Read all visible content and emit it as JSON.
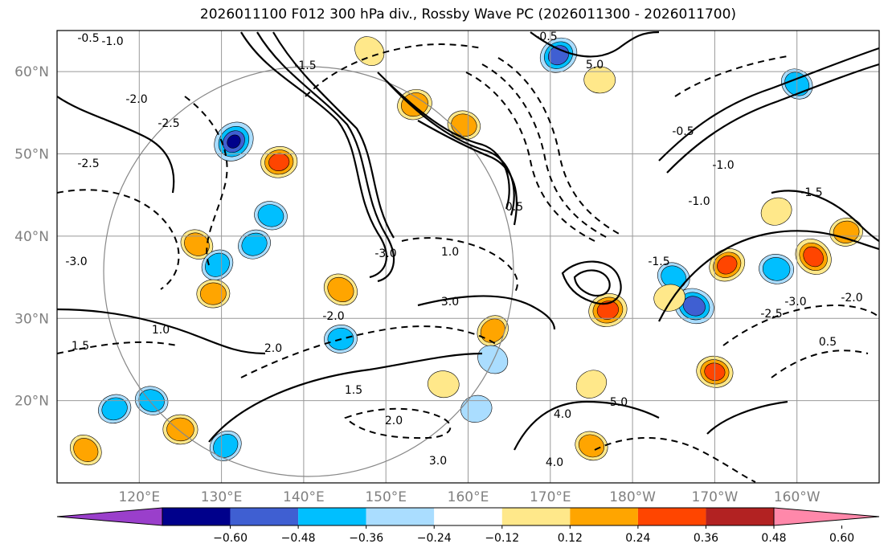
{
  "chart_data": {
    "type": "heatmap",
    "title": "2026011100 F012 300 hPa div., Rossby Wave PC (2026011300 - 2026011700)",
    "map": {
      "lon_range": [
        110,
        210
      ],
      "lat_range": [
        10,
        65
      ],
      "grid": true,
      "lon_ticks": [
        {
          "value": 120,
          "label": "120°E"
        },
        {
          "value": 130,
          "label": "130°E"
        },
        {
          "value": 140,
          "label": "140°E"
        },
        {
          "value": 150,
          "label": "150°E"
        },
        {
          "value": 160,
          "label": "160°E"
        },
        {
          "value": 170,
          "label": "170°E"
        },
        {
          "value": 180,
          "label": "180°W"
        },
        {
          "value": 190,
          "label": "170°W"
        },
        {
          "value": 200,
          "label": "160°W"
        }
      ],
      "lat_ticks": [
        {
          "value": 20,
          "label": "20°N"
        },
        {
          "value": 30,
          "label": "30°N"
        },
        {
          "value": 40,
          "label": "40°N"
        },
        {
          "value": 50,
          "label": "50°N"
        },
        {
          "value": 60,
          "label": "60°N"
        }
      ]
    },
    "colorbar": {
      "orientation": "horizontal",
      "extend": "both",
      "levels": [
        -0.6,
        -0.48,
        -0.36,
        -0.24,
        -0.12,
        0.12,
        0.24,
        0.36,
        0.48,
        0.6
      ],
      "labels": [
        "−0.60",
        "−0.48",
        "−0.36",
        "−0.24",
        "−0.12",
        "0.12",
        "0.24",
        "0.36",
        "0.48",
        "0.60"
      ],
      "colors": [
        "#9a3fcb",
        "#00008b",
        "#3f5fd2",
        "#00bfff",
        "#aaddff",
        "#ffffff",
        "#ffe88a",
        "#ffa500",
        "#ff4500",
        "#b22222",
        "#ff88aa"
      ]
    },
    "contour_levels_shown": [
      "-0.5",
      "-1.0",
      "-1.5",
      "-2.0",
      "-2.5",
      "-3.0",
      "0.5",
      "1.0",
      "1.5",
      "2.0",
      "3.0",
      "4.0",
      "5.0"
    ],
    "divergence_blobs": [
      {
        "lon": 131.5,
        "lat": 51.5,
        "value": -0.55
      },
      {
        "lon": 137,
        "lat": 49,
        "value": 0.4
      },
      {
        "lon": 127,
        "lat": 39,
        "value": 0.3
      },
      {
        "lon": 134,
        "lat": 39,
        "value": -0.3
      },
      {
        "lon": 136,
        "lat": 42.5,
        "value": -0.3
      },
      {
        "lon": 129.5,
        "lat": 36.5,
        "value": -0.3
      },
      {
        "lon": 129,
        "lat": 33,
        "value": 0.3
      },
      {
        "lon": 144.5,
        "lat": 33.5,
        "value": 0.35
      },
      {
        "lon": 153.5,
        "lat": 56,
        "value": 0.35
      },
      {
        "lon": 159.5,
        "lat": 53.5,
        "value": 0.3
      },
      {
        "lon": 171,
        "lat": 62,
        "value": -0.45
      },
      {
        "lon": 176,
        "lat": 59,
        "value": 0.25
      },
      {
        "lon": 200,
        "lat": 58.5,
        "value": -0.3
      },
      {
        "lon": 177,
        "lat": 31,
        "value": 0.45
      },
      {
        "lon": 187.5,
        "lat": 31.5,
        "value": -0.5
      },
      {
        "lon": 191.5,
        "lat": 36.5,
        "value": 0.4
      },
      {
        "lon": 197.5,
        "lat": 36,
        "value": -0.35
      },
      {
        "lon": 202,
        "lat": 37.5,
        "value": 0.45
      },
      {
        "lon": 206,
        "lat": 40.5,
        "value": 0.3
      },
      {
        "lon": 185,
        "lat": 35,
        "value": -0.3
      },
      {
        "lon": 197.5,
        "lat": 43,
        "value": 0.25
      },
      {
        "lon": 190,
        "lat": 23.5,
        "value": 0.4
      },
      {
        "lon": 163,
        "lat": 28.5,
        "value": 0.3
      },
      {
        "lon": 144.5,
        "lat": 27.5,
        "value": -0.3
      },
      {
        "lon": 163,
        "lat": 25,
        "value": -0.25
      },
      {
        "lon": 117,
        "lat": 19,
        "value": -0.3
      },
      {
        "lon": 121.5,
        "lat": 20,
        "value": -0.3
      },
      {
        "lon": 130.5,
        "lat": 14.5,
        "value": -0.3
      },
      {
        "lon": 125,
        "lat": 16.5,
        "value": 0.35
      },
      {
        "lon": 113.5,
        "lat": 14,
        "value": 0.3
      },
      {
        "lon": 161,
        "lat": 19,
        "value": -0.25
      },
      {
        "lon": 175,
        "lat": 14.5,
        "value": 0.3
      },
      {
        "lon": 175,
        "lat": 22,
        "value": 0.25
      },
      {
        "lon": 157,
        "lat": 22,
        "value": 0.25
      },
      {
        "lon": 148,
        "lat": 62.5,
        "value": 0.25
      },
      {
        "lon": 184.5,
        "lat": 32.5,
        "value": 0.25
      }
    ]
  }
}
